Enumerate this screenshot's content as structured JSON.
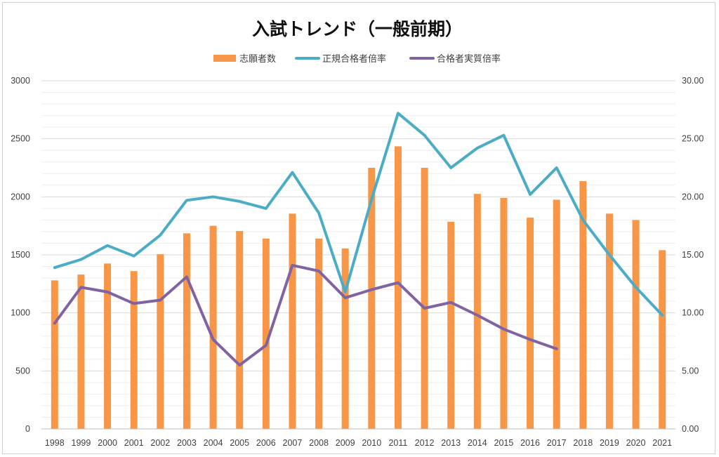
{
  "chart_data": {
    "type": "bar",
    "title": "入試トレンド（一般前期）",
    "categories": [
      "1998",
      "1999",
      "2000",
      "2001",
      "2002",
      "2003",
      "2004",
      "2005",
      "2006",
      "2007",
      "2008",
      "2009",
      "2010",
      "2011",
      "2012",
      "2013",
      "2014",
      "2015",
      "2016",
      "2017",
      "2018",
      "2019",
      "2020",
      "2021"
    ],
    "series": [
      {
        "name": "志願者数",
        "type": "bar",
        "axis": "left",
        "color": "#F79646",
        "values": [
          1280,
          1330,
          1425,
          1360,
          1505,
          1685,
          1750,
          1705,
          1640,
          1855,
          1640,
          1555,
          2250,
          2435,
          2250,
          1785,
          2025,
          1990,
          1820,
          1975,
          2135,
          1855,
          1800,
          1540
        ]
      },
      {
        "name": "正規合格者倍率",
        "type": "line",
        "axis": "right",
        "color": "#4BACC6",
        "values": [
          13.9,
          14.6,
          15.8,
          14.9,
          16.7,
          19.7,
          20.0,
          19.6,
          19.0,
          22.1,
          18.6,
          11.8,
          19.8,
          27.2,
          25.3,
          22.5,
          24.2,
          25.3,
          20.2,
          22.5,
          18.0,
          15.0,
          12.2,
          9.8
        ]
      },
      {
        "name": "合格者実質倍率",
        "type": "line",
        "axis": "right",
        "color": "#8064A2",
        "values": [
          9.1,
          12.2,
          11.8,
          10.8,
          11.1,
          13.1,
          7.7,
          5.5,
          7.2,
          14.1,
          13.6,
          11.3,
          12.0,
          12.6,
          10.4,
          10.9,
          9.8,
          8.6,
          7.7,
          6.9,
          null,
          null,
          null,
          null
        ]
      }
    ],
    "y_left": {
      "min": 0,
      "max": 3000,
      "ticks": [
        "0",
        "500",
        "1000",
        "1500",
        "2000",
        "2500",
        "3000"
      ]
    },
    "y_right": {
      "min": 0,
      "max": 30,
      "ticks": [
        "0.00",
        "5.00",
        "10.00",
        "15.00",
        "20.00",
        "25.00",
        "30.00"
      ]
    },
    "grid": true,
    "legend_position": "top"
  }
}
